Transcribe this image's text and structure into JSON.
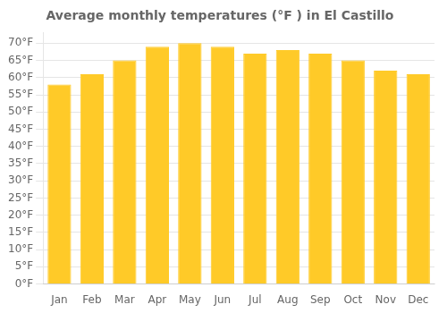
{
  "chart_data": {
    "type": "bar",
    "title": "Average monthly temperatures (°F ) in El Castillo",
    "categories": [
      "Jan",
      "Feb",
      "Mar",
      "Apr",
      "May",
      "Jun",
      "Jul",
      "Aug",
      "Sep",
      "Oct",
      "Nov",
      "Dec"
    ],
    "values": [
      58,
      61,
      65,
      69,
      70,
      69,
      67,
      68,
      67,
      65,
      62,
      61
    ],
    "color": "#FFCA28",
    "ylim": [
      0,
      73
    ],
    "yticks": [
      {
        "value": 0,
        "label": "0°F"
      },
      {
        "value": 5,
        "label": "5°F"
      },
      {
        "value": 10,
        "label": "10°F"
      },
      {
        "value": 15,
        "label": "15°F"
      },
      {
        "value": 20,
        "label": "20°F"
      },
      {
        "value": 25,
        "label": "25°F"
      },
      {
        "value": 30,
        "label": "30°F"
      },
      {
        "value": 35,
        "label": "35°F"
      },
      {
        "value": 40,
        "label": "40°F"
      },
      {
        "value": 45,
        "label": "45°F"
      },
      {
        "value": 50,
        "label": "50°F"
      },
      {
        "value": 55,
        "label": "55°F"
      },
      {
        "value": 60,
        "label": "60°F"
      },
      {
        "value": 65,
        "label": "65°F"
      },
      {
        "value": 70,
        "label": "70°F"
      }
    ],
    "grid": true
  }
}
